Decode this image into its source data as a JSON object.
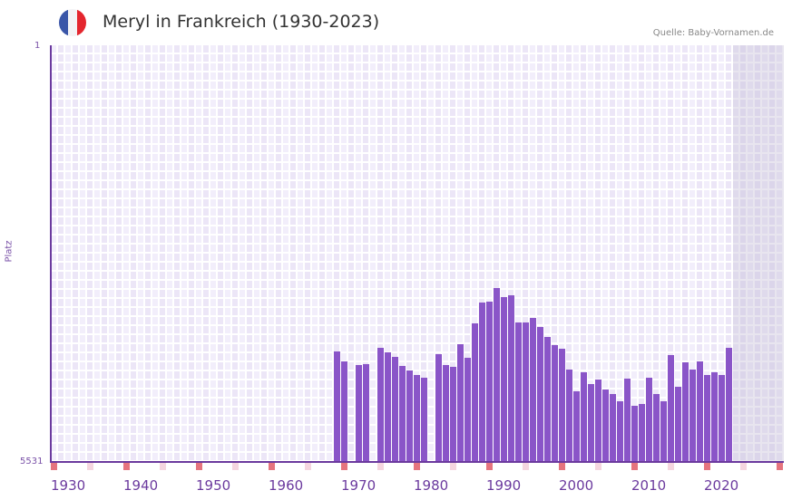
{
  "header": {
    "title": "Meryl in Frankreich (1930-2023)",
    "source": "Quelle: Baby-Vornamen.de",
    "flag_colors": [
      "#3a56a8",
      "#f3f3f5",
      "#e4262e"
    ]
  },
  "axes": {
    "y_title": "Platz",
    "y_top_label": "1",
    "y_bottom_label": "5531",
    "x_ticks": [
      "1930",
      "1940",
      "1950",
      "1960",
      "1970",
      "1980",
      "1990",
      "2000",
      "2010",
      "2020"
    ]
  },
  "colors": {
    "bar": "#8a55c8",
    "axis": "#6b3a9e",
    "grid_a": "#f2eefb",
    "grid_b": "#ece6f7",
    "decade_marker": "#e5747e",
    "half_decade_marker": "#f5d6df"
  },
  "chart_data": {
    "type": "bar",
    "title": "Meryl in Frankreich (1930-2023)",
    "xlabel": "",
    "ylabel": "Platz",
    "y_inverted": true,
    "ylim": [
      1,
      5531
    ],
    "xlim": [
      1930,
      2030
    ],
    "grid": true,
    "categories": [
      1969,
      1970,
      1972,
      1973,
      1975,
      1976,
      1977,
      1978,
      1979,
      1980,
      1981,
      1983,
      1984,
      1985,
      1986,
      1987,
      1988,
      1989,
      1990,
      1991,
      1992,
      1993,
      1994,
      1995,
      1996,
      1997,
      1998,
      1999,
      2000,
      2001,
      2002,
      2003,
      2004,
      2005,
      2006,
      2007,
      2008,
      2009,
      2010,
      2011,
      2012,
      2013,
      2014,
      2015,
      2016,
      2017,
      2018,
      2019,
      2020,
      2021,
      2022,
      2023
    ],
    "values": [
      4065,
      4197,
      4245,
      4233,
      4016,
      4076,
      4137,
      4257,
      4317,
      4377,
      4413,
      4101,
      4245,
      4269,
      3968,
      4149,
      3692,
      3415,
      3403,
      3223,
      3343,
      3319,
      3680,
      3680,
      3620,
      3740,
      3872,
      3981,
      4028,
      4305,
      4593,
      4341,
      4497,
      4437,
      4569,
      4629,
      4726,
      4425,
      4786,
      4762,
      4413,
      4629,
      4726,
      4113,
      4533,
      4209,
      4305,
      4197,
      4377,
      4341,
      4377,
      4016
    ],
    "annotations": [
      "Quelle: Baby-Vornamen.de"
    ]
  }
}
